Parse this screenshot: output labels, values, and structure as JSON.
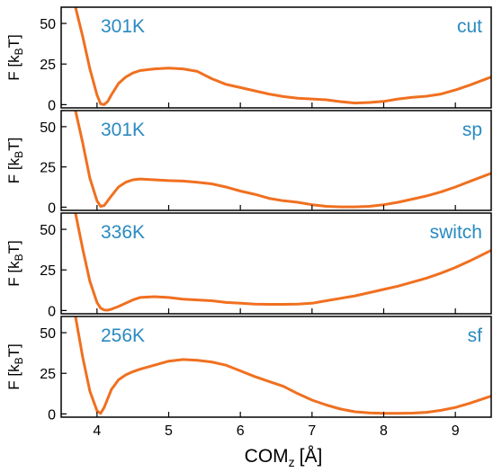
{
  "colors": {
    "curve": "#f07020",
    "annotation": "#2a8ac0",
    "frame": "#000000"
  },
  "xlabel": {
    "main": "COM",
    "sub": "z",
    "unit": "[Å]"
  },
  "chart_data": [
    {
      "type": "line",
      "label_left": "301K",
      "label_right": "cut",
      "ylabel": {
        "main": "F [k",
        "sub": "B",
        "end": "T]"
      },
      "xlim": [
        3.5,
        9.5
      ],
      "ylim": [
        -2,
        60
      ],
      "yticks": [
        "0",
        "25",
        "50"
      ],
      "yticks_values": [
        0,
        25,
        50
      ],
      "x": [
        3.7,
        3.8,
        3.9,
        4.0,
        4.05,
        4.1,
        4.15,
        4.2,
        4.3,
        4.4,
        4.5,
        4.6,
        4.8,
        5.0,
        5.2,
        5.4,
        5.6,
        5.8,
        6.0,
        6.2,
        6.4,
        6.6,
        6.8,
        7.0,
        7.2,
        7.4,
        7.6,
        7.8,
        8.0,
        8.2,
        8.4,
        8.6,
        8.8,
        9.0,
        9.2,
        9.5
      ],
      "y": [
        60,
        42,
        22,
        6,
        0.5,
        0,
        2,
        6,
        13,
        17,
        19.5,
        21,
        22,
        22.5,
        22,
        20.5,
        16,
        12.5,
        10.5,
        8.5,
        6.5,
        5,
        4,
        3.5,
        3,
        1.8,
        1,
        1.3,
        2,
        3.5,
        4.5,
        5.2,
        6.5,
        9,
        12,
        17
      ]
    },
    {
      "type": "line",
      "label_left": "301K",
      "label_right": "sp",
      "ylabel": {
        "main": "F [k",
        "sub": "B",
        "end": "T]"
      },
      "xlim": [
        3.5,
        9.5
      ],
      "ylim": [
        -2,
        60
      ],
      "yticks": [
        "0",
        "25",
        "50"
      ],
      "yticks_values": [
        0,
        25,
        50
      ],
      "x": [
        3.7,
        3.8,
        3.9,
        4.0,
        4.05,
        4.1,
        4.2,
        4.3,
        4.4,
        4.5,
        4.6,
        4.8,
        5.0,
        5.2,
        5.4,
        5.6,
        5.8,
        6.0,
        6.2,
        6.4,
        6.6,
        6.8,
        7.0,
        7.2,
        7.4,
        7.6,
        7.8,
        8.0,
        8.2,
        8.4,
        8.6,
        8.8,
        9.0,
        9.2,
        9.5
      ],
      "y": [
        60,
        40,
        18,
        4,
        0.5,
        1,
        7,
        12.5,
        15.5,
        17,
        17.5,
        17,
        16.5,
        16.2,
        15.5,
        14.5,
        12.5,
        10,
        8,
        5.5,
        4,
        3,
        1.5,
        0.5,
        0.2,
        0.2,
        0.5,
        1.5,
        3,
        5,
        7,
        9.5,
        12.5,
        16,
        21
      ]
    },
    {
      "type": "line",
      "label_left": "336K",
      "label_right": "switch",
      "ylabel": {
        "main": "F [k",
        "sub": "B",
        "end": "T]"
      },
      "xlim": [
        3.5,
        9.5
      ],
      "ylim": [
        -2,
        60
      ],
      "yticks": [
        "0",
        "25",
        "50"
      ],
      "yticks_values": [
        0,
        25,
        50
      ],
      "x": [
        3.7,
        3.8,
        3.9,
        4.0,
        4.05,
        4.1,
        4.15,
        4.2,
        4.3,
        4.4,
        4.5,
        4.6,
        4.8,
        5.0,
        5.2,
        5.4,
        5.6,
        5.8,
        6.0,
        6.2,
        6.4,
        6.6,
        6.8,
        7.0,
        7.2,
        7.4,
        7.6,
        7.8,
        8.0,
        8.2,
        8.4,
        8.6,
        8.8,
        9.0,
        9.2,
        9.5
      ],
      "y": [
        60,
        38,
        18,
        5,
        1.5,
        0.3,
        0.2,
        0.8,
        2.5,
        4.5,
        6.5,
        8,
        8.5,
        8,
        7,
        6.5,
        6,
        5,
        4.5,
        4,
        3.8,
        3.8,
        4,
        4.5,
        6,
        7.5,
        9,
        11,
        13,
        15,
        17.5,
        20,
        23,
        26.5,
        30.5,
        37
      ]
    },
    {
      "type": "line",
      "label_left": "256K",
      "label_right": "sf",
      "ylabel": {
        "main": "F [k",
        "sub": "B",
        "end": "T]"
      },
      "xlim": [
        3.5,
        9.5
      ],
      "ylim": [
        -2,
        60
      ],
      "yticks": [
        "0",
        "25",
        "50"
      ],
      "yticks_values": [
        0,
        25,
        50
      ],
      "x": [
        3.7,
        3.8,
        3.9,
        4.0,
        4.05,
        4.1,
        4.2,
        4.3,
        4.4,
        4.5,
        4.6,
        4.8,
        5.0,
        5.2,
        5.4,
        5.6,
        5.8,
        6.0,
        6.2,
        6.4,
        6.6,
        6.8,
        7.0,
        7.2,
        7.4,
        7.6,
        7.8,
        8.0,
        8.2,
        8.4,
        8.6,
        8.8,
        9.0,
        9.2,
        9.5
      ],
      "y": [
        60,
        35,
        14,
        2,
        0.3,
        4,
        15,
        21,
        24,
        26,
        27.5,
        30,
        32.5,
        33.5,
        33,
        32,
        30,
        26.5,
        23,
        20,
        17,
        12.5,
        8.5,
        5.5,
        3,
        1.3,
        0.6,
        0.3,
        0.3,
        0.5,
        1,
        2.2,
        4,
        6.5,
        11
      ]
    }
  ],
  "xaxis": {
    "ticks": [
      "4",
      "5",
      "6",
      "7",
      "8",
      "9"
    ],
    "ticks_values": [
      4,
      5,
      6,
      7,
      8,
      9
    ]
  }
}
